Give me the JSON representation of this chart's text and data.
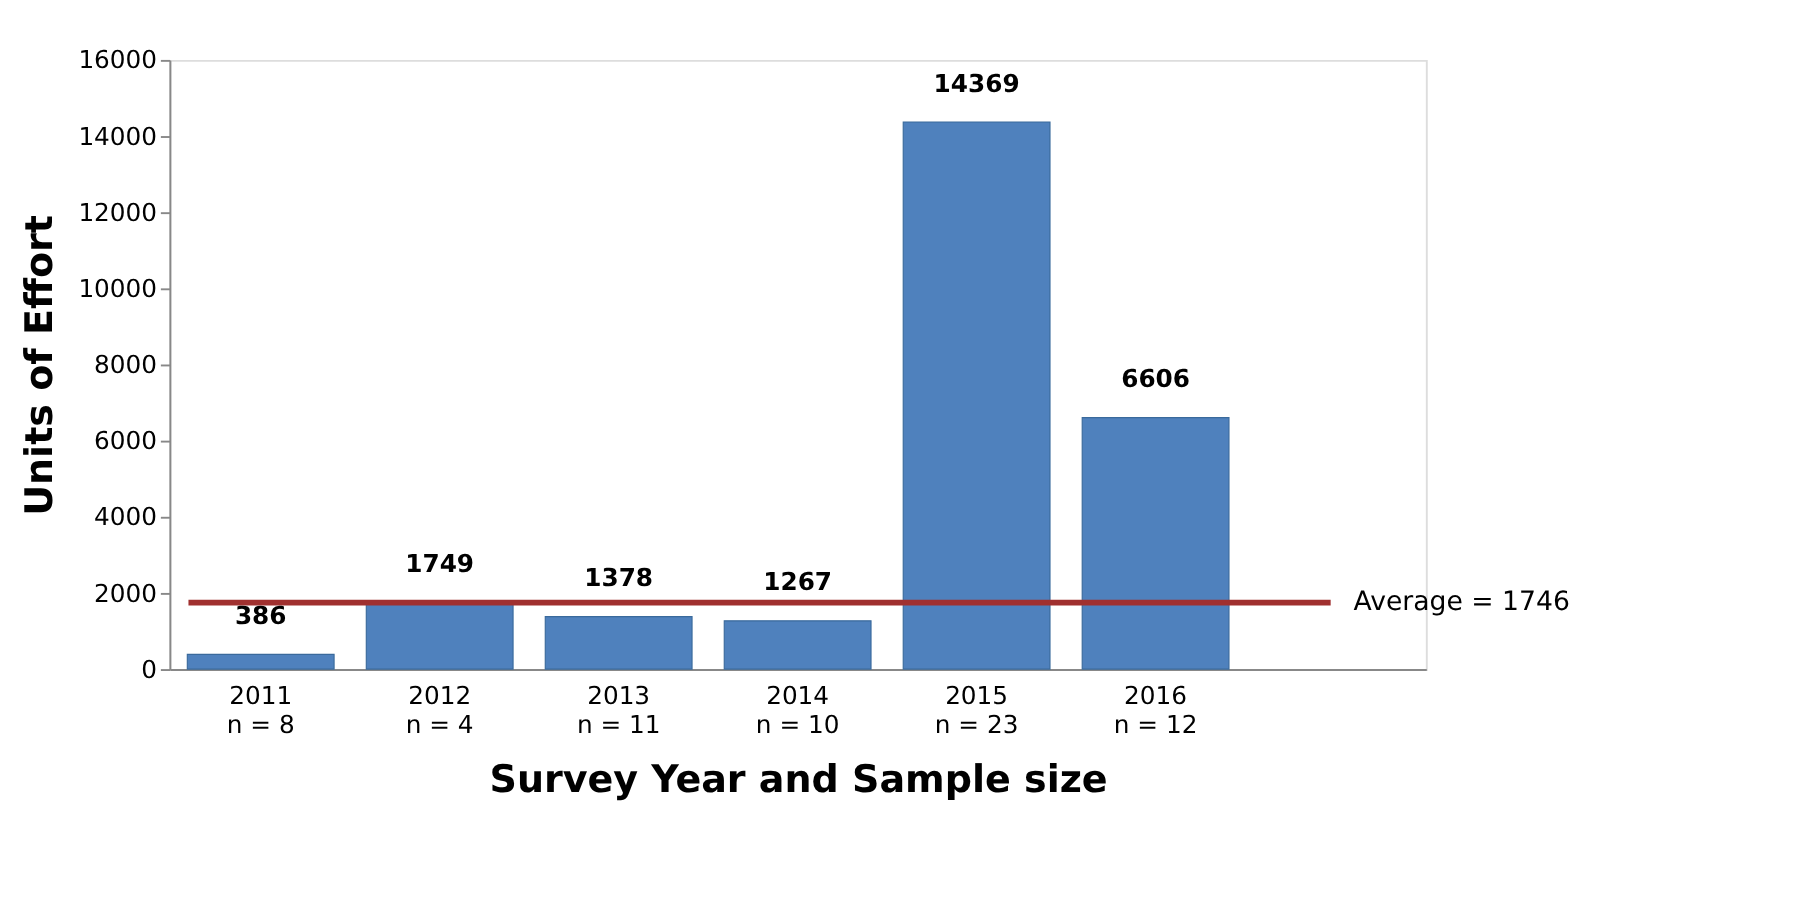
{
  "chart_data": {
    "type": "bar",
    "xlabel": "Survey Year and Sample size",
    "ylabel": "Units of Effort",
    "categories": [
      "2011\nn = 8",
      "2012\nn = 4",
      "2013\nn = 11",
      "2014\nn = 10",
      "2015\nn = 23",
      "2016\nn = 12"
    ],
    "values": [
      386,
      1749,
      1378,
      1267,
      14369,
      6606
    ],
    "color": "#4f81bd",
    "ylim": [
      0,
      16000
    ],
    "yticks": [
      0,
      2000,
      4000,
      6000,
      8000,
      10000,
      12000,
      14000,
      16000
    ],
    "grid": false,
    "data_labels": true,
    "ref_lines": [
      {
        "axis": "y",
        "value": 1746,
        "label": "Average = 1746",
        "color": "#a0302f"
      }
    ]
  }
}
